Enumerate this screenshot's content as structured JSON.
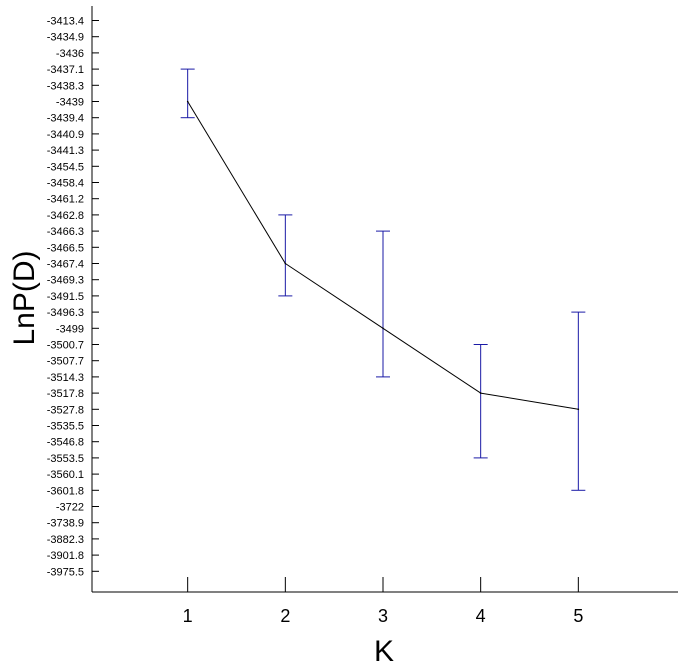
{
  "chart_data": {
    "type": "line",
    "title": "",
    "xlabel": "K",
    "ylabel": "LnP(D)",
    "x": [
      1,
      2,
      3,
      4,
      5
    ],
    "x_ticks": [
      "1",
      "2",
      "3",
      "4",
      "5"
    ],
    "x_range": [
      0,
      6
    ],
    "y_tick_labels": [
      "-3413.4",
      "-3434.9",
      "-3436",
      "-3437.1",
      "-3438.3",
      "-3439",
      "-3439.4",
      "-3440.9",
      "-3441.3",
      "-3454.5",
      "-3458.4",
      "-3461.2",
      "-3462.8",
      "-3466.3",
      "-3466.5",
      "-3467.4",
      "-3469.3",
      "-3491.5",
      "-3496.3",
      "-3499",
      "-3500.7",
      "-3507.7",
      "-3514.3",
      "-3517.8",
      "-3527.8",
      "-3535.5",
      "-3546.8",
      "-3553.5",
      "-3560.1",
      "-3601.8",
      "-3722",
      "-3738.9",
      "-3882.3",
      "-3901.8",
      "-3975.5"
    ],
    "series": [
      {
        "values": [
          -3439,
          -3467.4,
          -3499,
          -3517.8,
          -3527.8
        ],
        "error_upper": [
          -3437.1,
          -3462.8,
          -3466.3,
          -3500.7,
          -3496.3
        ],
        "error_lower": [
          -3439.4,
          -3491.5,
          -3514.3,
          -3553.5,
          -3601.8
        ],
        "line_color": "#000000",
        "error_bar_color": "#1a1aa6"
      }
    ],
    "grid": false,
    "legend": "none"
  }
}
